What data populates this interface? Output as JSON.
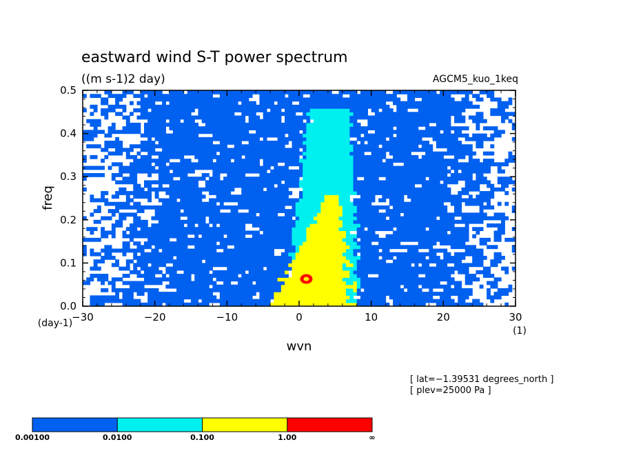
{
  "chart_data": {
    "type": "heatmap",
    "title": "eastward wind S-T power spectrum",
    "units": "((m s-1)2 day)",
    "model_label": "AGCM5_kuo_1keq",
    "xlabel": "wvn",
    "ylabel": "freq",
    "x_unit": "(1)",
    "y_unit": "(day-1)",
    "xlim": [
      -30,
      30
    ],
    "ylim": [
      0,
      0.5
    ],
    "x_ticks": [
      -30,
      -20,
      -10,
      0,
      10,
      20,
      30
    ],
    "y_ticks": [
      0.0,
      0.1,
      0.2,
      0.3,
      0.4,
      0.5
    ],
    "x_tick_labels": [
      "−30",
      "−20",
      "−10",
      "0",
      "10",
      "20",
      "30"
    ],
    "y_tick_labels": [
      "0.0",
      "0.1",
      "0.2",
      "0.3",
      "0.4",
      "0.5"
    ],
    "contour_levels": [
      0.001,
      0.01,
      0.1,
      1.0
    ],
    "colorbar": {
      "labels": [
        "0.00100",
        "0.0100",
        "0.100",
        "1.00",
        "∞"
      ],
      "colors": [
        "#0060f0",
        "#00f0f0",
        "#ffff00",
        "#ff0000"
      ]
    },
    "colors": {
      "below": "#ffffff",
      "level1": "#0060f0",
      "level2": "#00f0f0",
      "level3": "#ffff00",
      "level4": "#ff0000"
    },
    "features": {
      "cyan_band": {
        "center_x": 3,
        "slope_per_freq": 3,
        "width_low": 5,
        "width_high": 2.5
      },
      "yellow_core": {
        "center_x": 1.5,
        "freq_max": 0.26
      },
      "red_peak": {
        "x": 1,
        "y": 0.063
      }
    }
  },
  "annotations": {
    "lat": "[ lat=−1.39531 degrees_north ]",
    "plev": "[ plev=25000 Pa ]"
  }
}
